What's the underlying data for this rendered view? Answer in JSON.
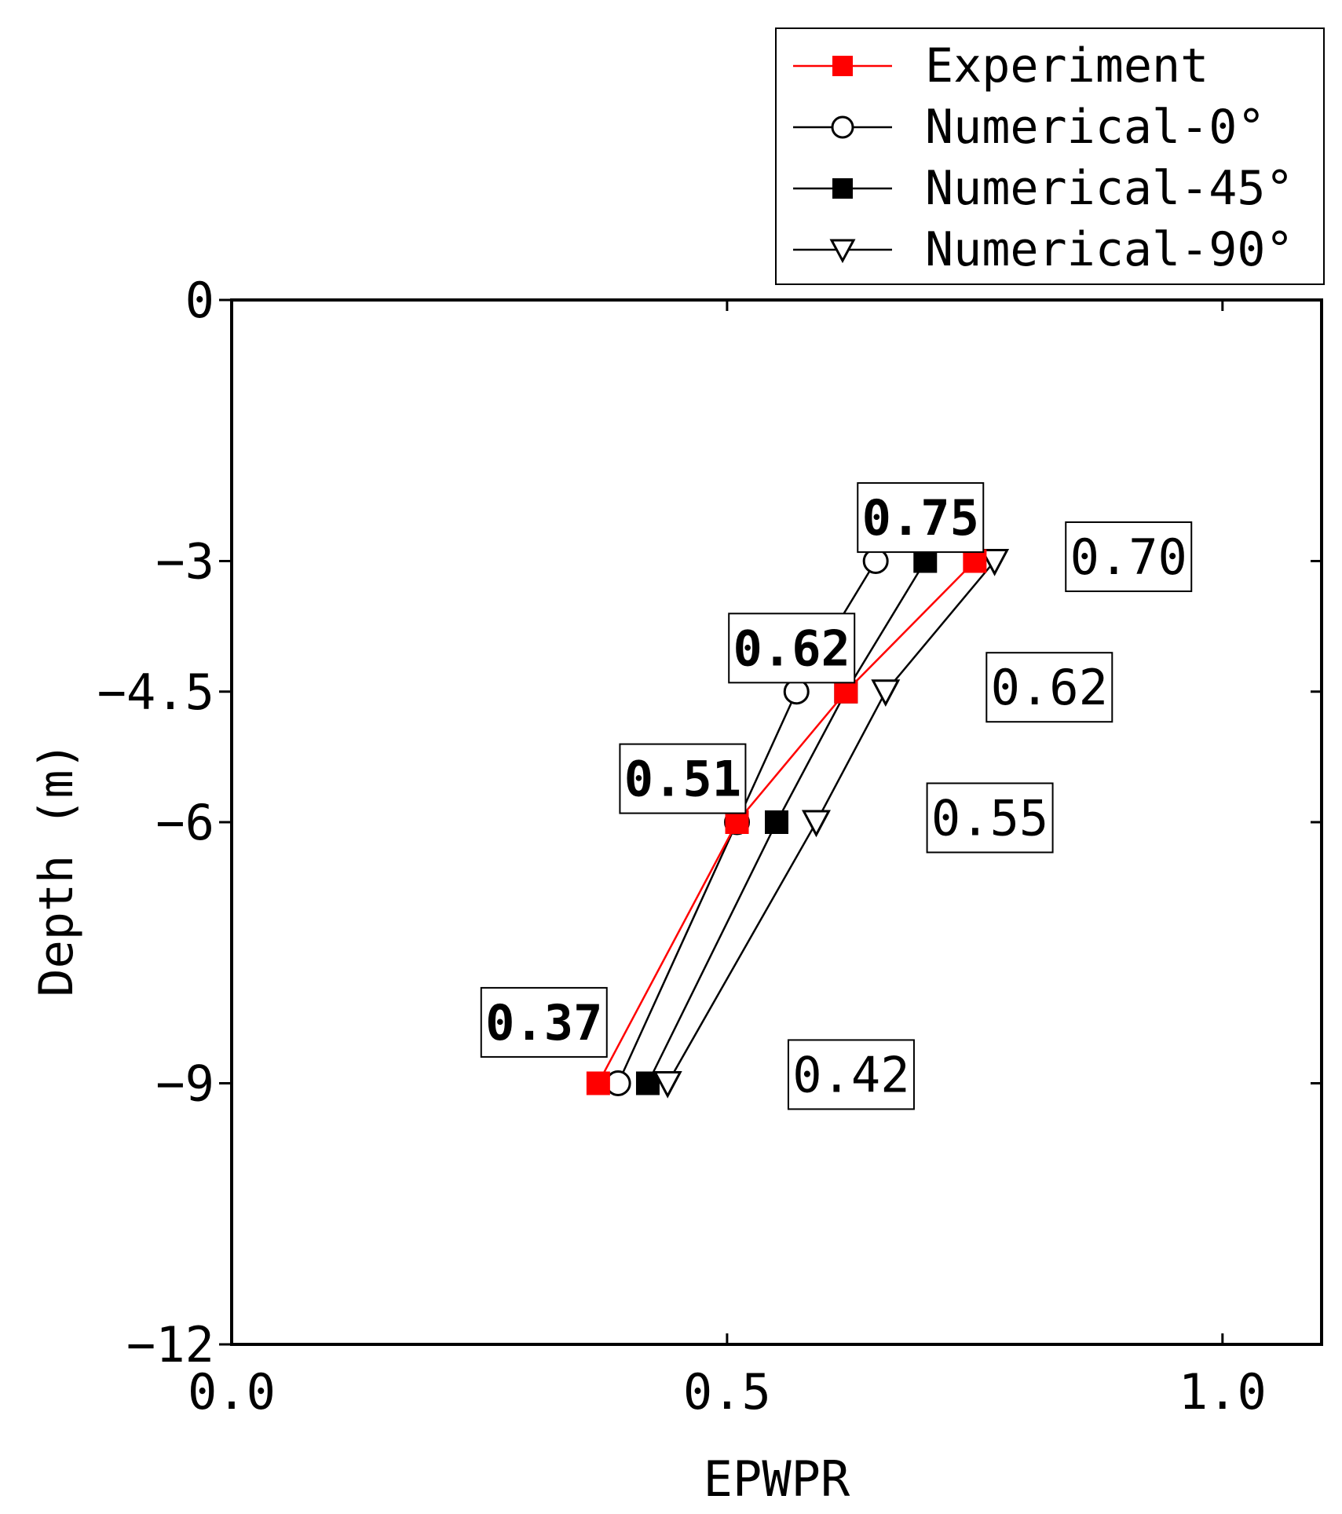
{
  "chart_data": {
    "type": "line",
    "xlabel": "EPWPR",
    "ylabel": "Depth (m)",
    "xlim": [
      0.0,
      1.1
    ],
    "ylim": [
      -12,
      0
    ],
    "x_ticks": [
      0.0,
      0.5,
      1.0
    ],
    "x_tick_labels": [
      "0.0",
      "0.5",
      "1.0"
    ],
    "y_ticks": [
      0,
      -3,
      -4.5,
      -6,
      -9,
      -12
    ],
    "y_tick_labels": [
      "0",
      "−3",
      "−4.5",
      "−6",
      "−9",
      "−12"
    ],
    "grid": false,
    "legend_position": "top-right, above plot",
    "series": [
      {
        "name": "Experiment",
        "color": "#ff0000",
        "line_color": "#ff0000",
        "marker": "filled-square",
        "points": [
          [
            0.75,
            -3
          ],
          [
            0.62,
            -4.5
          ],
          [
            0.51,
            -6
          ],
          [
            0.37,
            -9
          ]
        ]
      },
      {
        "name": "Numerical-0°",
        "color": "#000000",
        "line_color": "#000000",
        "marker": "open-circle",
        "points": [
          [
            0.65,
            -3
          ],
          [
            0.57,
            -4.5
          ],
          [
            0.51,
            -6
          ],
          [
            0.39,
            -9
          ]
        ]
      },
      {
        "name": "Numerical-45°",
        "color": "#000000",
        "line_color": "#000000",
        "marker": "filled-square",
        "points": [
          [
            0.7,
            -3
          ],
          [
            0.62,
            -4.5
          ],
          [
            0.55,
            -6
          ],
          [
            0.42,
            -9
          ]
        ]
      },
      {
        "name": "Numerical-90°",
        "color": "#000000",
        "line_color": "#000000",
        "marker": "open-triangle-down",
        "points": [
          [
            0.77,
            -3
          ],
          [
            0.66,
            -4.5
          ],
          [
            0.59,
            -6
          ],
          [
            0.44,
            -9
          ]
        ]
      }
    ],
    "annotations": [
      {
        "text": "0.75",
        "bold": true,
        "x": 0.635,
        "y": -2.5
      },
      {
        "text": "0.62",
        "bold": true,
        "x": 0.505,
        "y": -4.0
      },
      {
        "text": "0.51",
        "bold": true,
        "x": 0.395,
        "y": -5.5
      },
      {
        "text": "0.37",
        "bold": true,
        "x": 0.255,
        "y": -8.3
      },
      {
        "text": "0.70",
        "bold": false,
        "x": 0.845,
        "y": -2.95
      },
      {
        "text": "0.62",
        "bold": false,
        "x": 0.765,
        "y": -4.45
      },
      {
        "text": "0.55",
        "bold": false,
        "x": 0.705,
        "y": -5.95
      },
      {
        "text": "0.42",
        "bold": false,
        "x": 0.565,
        "y": -8.9
      }
    ]
  }
}
